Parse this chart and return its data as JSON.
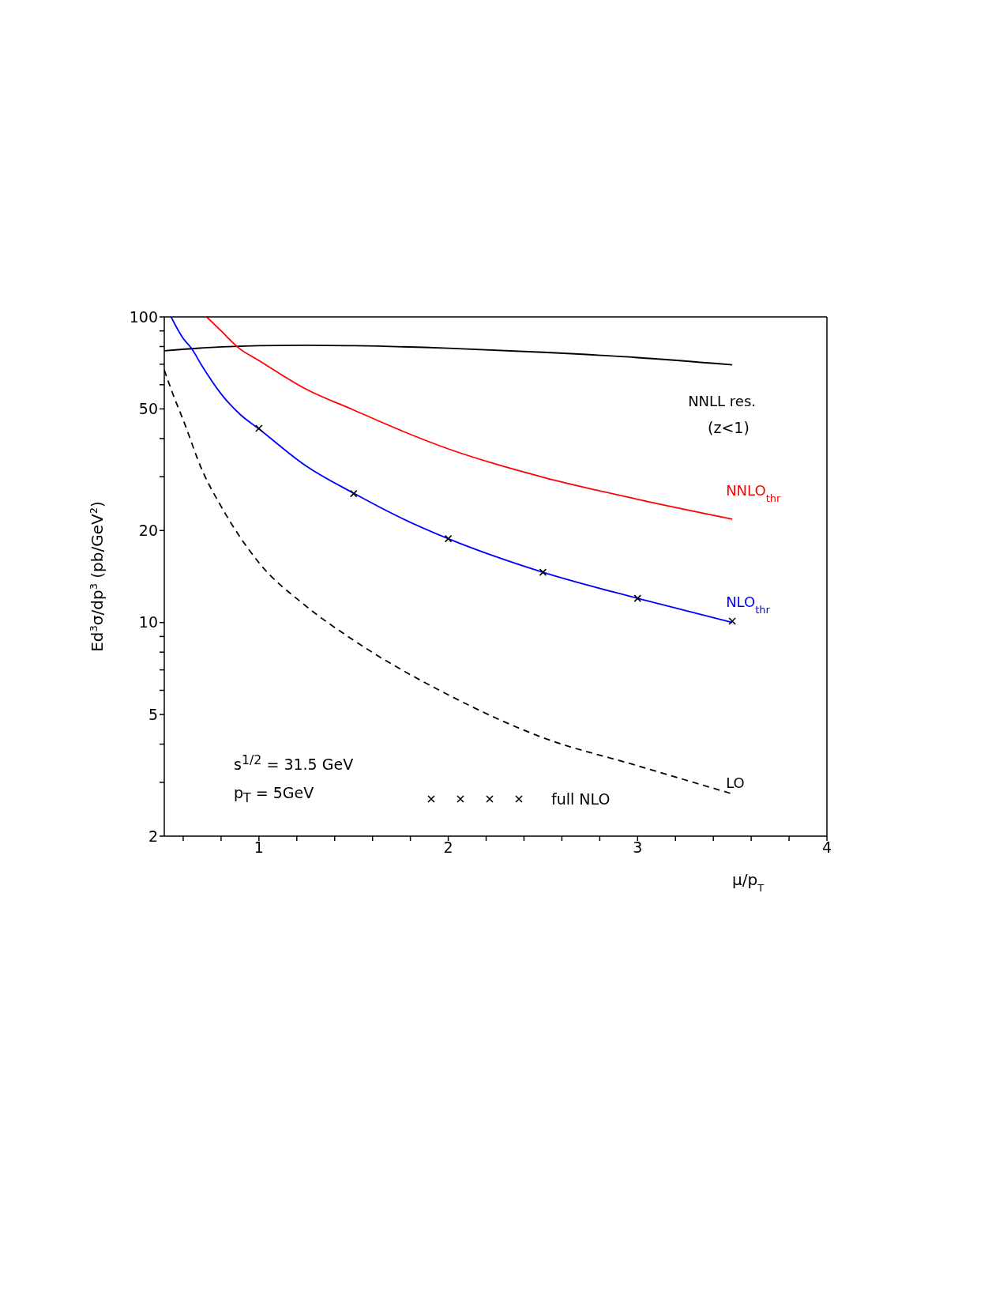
{
  "chart_data": {
    "type": "line",
    "xlabel": "μ/p$_{T}$",
    "ylabel": "Ed$^{3}$σ/dp$^{3}$ (pb/GeV$^{2}$)",
    "log": "y",
    "legend": "bottom",
    "xlim": [
      0.5,
      4
    ],
    "ylim": [
      2,
      100
    ],
    "xticks": [
      {
        "value": 0.6,
        "label": null
      },
      {
        "value": 0.8,
        "label": null
      },
      1,
      {
        "value": 1.2,
        "label": null
      },
      {
        "value": 1.4,
        "label": null
      },
      {
        "value": 1.6,
        "label": null
      },
      {
        "value": 1.8,
        "label": null
      },
      2,
      {
        "value": 2.2,
        "label": null
      },
      {
        "value": 2.4,
        "label": null
      },
      {
        "value": 2.6,
        "label": null
      },
      {
        "value": 2.8,
        "label": null
      },
      3,
      {
        "value": 3.2,
        "label": null
      },
      {
        "value": 3.4,
        "label": null
      },
      {
        "value": 3.6,
        "label": null
      },
      {
        "value": 3.8,
        "label": null
      },
      4
    ],
    "yticks": [
      2,
      {
        "value": 3,
        "label": null
      },
      {
        "value": 4,
        "label": null
      },
      5,
      {
        "value": 6,
        "label": null
      },
      {
        "value": 7,
        "label": null
      },
      {
        "value": 8,
        "label": null
      },
      {
        "value": 9,
        "label": null
      },
      10,
      20,
      {
        "value": 30,
        "label": null
      },
      {
        "value": 40,
        "label": null
      },
      50,
      {
        "value": 60,
        "label": null
      },
      {
        "value": 70,
        "label": null
      },
      {
        "value": 80,
        "label": null
      },
      {
        "value": 90,
        "label": null
      },
      100
    ],
    "annotations": [
      "(z<1)",
      "s$^{1/2}$ = 31.5 GeV",
      "p$_{T}$ = 5GeV"
    ],
    "series": [
      {
        "name": "NNLL res.",
        "color": "#000000",
        "x": [
          0.5,
          0.75,
          1,
          1.25,
          1.5,
          2,
          2.5,
          3,
          3.5
        ],
        "values": [
          77.5,
          79.5,
          80.5,
          80.8,
          80.5,
          79,
          76.6,
          73.6,
          69.7
        ]
      },
      {
        "name": "NNLO$_{thr}$",
        "color": "#ff0000",
        "x": [
          0.724,
          0.8,
          0.895,
          1,
          1.25,
          1.5,
          1.75,
          2,
          2.25,
          2.5,
          3,
          3.5
        ],
        "values": [
          100,
          90,
          79,
          72,
          58,
          49.6,
          42.5,
          37,
          33,
          29.9,
          25.3,
          21.8
        ]
      },
      {
        "name": "NLO$_{thr}$",
        "color": "#0000ff",
        "x": [
          0.536,
          0.6,
          0.643,
          0.7,
          0.8,
          0.9,
          1,
          1.25,
          1.5,
          1.75,
          2,
          2.5,
          3,
          3.5
        ],
        "values": [
          100,
          85,
          79,
          69,
          56,
          48,
          43,
          32.5,
          26.5,
          22,
          18.8,
          14.6,
          12.0,
          10.0
        ]
      },
      {
        "name": "LO",
        "color": "#000000",
        "line_style": "dashed",
        "x": [
          0.5,
          0.55,
          0.6,
          0.7,
          0.8,
          1,
          1.25,
          1.5,
          2,
          2.5,
          3,
          3.5
        ],
        "values": [
          67,
          55,
          46,
          31.5,
          24,
          15.7,
          11.3,
          8.75,
          5.8,
          4.2,
          3.4,
          2.75
        ]
      },
      {
        "name": "full NLO",
        "type": "scatter",
        "marker": "cross",
        "color": "#000000",
        "x": [
          1,
          1.5,
          2,
          2.5,
          3,
          3.5
        ],
        "values": [
          43.2,
          26.4,
          18.8,
          14.6,
          12.0,
          10.1
        ]
      }
    ]
  }
}
